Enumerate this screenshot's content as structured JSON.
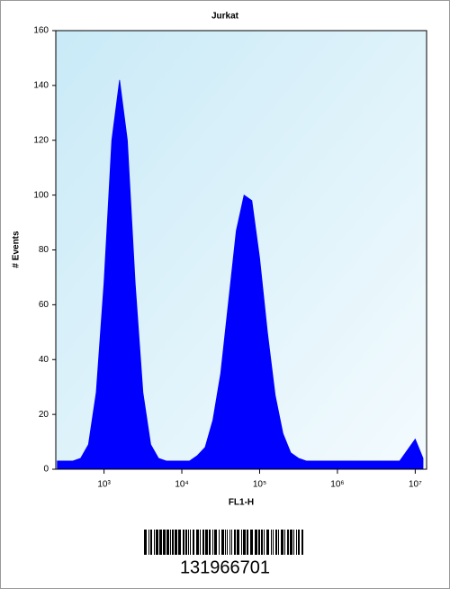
{
  "chart_data": {
    "type": "area",
    "title": "Jurkat",
    "xlabel": "FL1-H",
    "ylabel": "# Events",
    "x": [
      251,
      316,
      398,
      501,
      631,
      794,
      1000,
      1259,
      1585,
      1995,
      2512,
      3162,
      3981,
      5012,
      6310,
      7943,
      10000,
      12589,
      15849,
      19953,
      25119,
      31623,
      39811,
      50119,
      63096,
      79433,
      100000,
      125893,
      158489,
      199526,
      251189,
      316228,
      398107,
      501187,
      630957,
      794328,
      1000000,
      1258925,
      1584893,
      1995262,
      2511886,
      3162278,
      3981072,
      5011872,
      6309573,
      7943282,
      10000000,
      12589254
    ],
    "series": [
      {
        "color": "#0000ff",
        "values": [
          3,
          3,
          3,
          4,
          9,
          28,
          68,
          120,
          142,
          120,
          68,
          28,
          9,
          4,
          3,
          3,
          3,
          3,
          5,
          8,
          18,
          35,
          61,
          87,
          100,
          98,
          77,
          50,
          27,
          13,
          6,
          4,
          3,
          3,
          3,
          3,
          3,
          3,
          3,
          3,
          3,
          3,
          3,
          3,
          3,
          7,
          11,
          4
        ]
      }
    ],
    "xscale": "log",
    "xlim": [
      240,
      14000000
    ],
    "xticks": [
      {
        "value": 1000,
        "label": "10³"
      },
      {
        "value": 10000,
        "label": "10⁴"
      },
      {
        "value": 100000,
        "label": "10⁵"
      },
      {
        "value": 1000000,
        "label": "10⁶"
      },
      {
        "value": 10000000,
        "label": "10⁷"
      }
    ],
    "ylim": [
      0,
      160
    ],
    "yticks": [
      0,
      20,
      40,
      60,
      80,
      100,
      120,
      140,
      160
    ]
  },
  "barcode": {
    "label": "131966701"
  }
}
